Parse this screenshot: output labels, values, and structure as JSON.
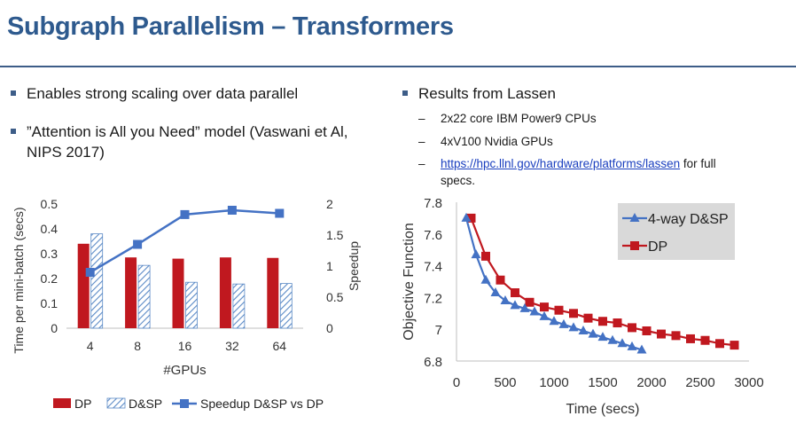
{
  "slide": {
    "title": "Subgraph Parallelism – Transformers",
    "left_bullets": [
      "Enables strong scaling over data parallel",
      "”Attention is All you Need” model (Vaswani et Al, NIPS 2017)"
    ],
    "right_bullet": "Results from Lassen",
    "sub_bullets": [
      "2x22 core IBM Power9 CPUs",
      "4xV100 Nvidia GPUs"
    ],
    "link_text": "https://hpc.llnl.gov/hardware/platforms/lassen",
    "link_suffix": " for full specs."
  },
  "colors": {
    "title": "#2e5a8e",
    "dp": "#c0181f",
    "dsp": "#5b8ac6",
    "speedup": "#4472c4",
    "rule": "#3d5d88"
  },
  "chart_data": [
    {
      "type": "bar",
      "categories": [
        "4",
        "8",
        "16",
        "32",
        "64"
      ],
      "series": [
        {
          "name": "DP",
          "values": [
            0.34,
            0.285,
            0.28,
            0.285,
            0.283
          ]
        },
        {
          "name": "D&SP",
          "values": [
            0.38,
            0.253,
            0.185,
            0.178,
            0.18
          ]
        }
      ],
      "secondary_series": {
        "name": "Speedup D&SP vs DP",
        "type": "line",
        "values": [
          0.9,
          1.35,
          1.83,
          1.9,
          1.85
        ]
      },
      "xlabel": "#GPUs",
      "ylabel": "Time per mini-batch (secs)",
      "y2label": "Speedup",
      "ylim": [
        0,
        0.5
      ],
      "y2lim": [
        0,
        2
      ],
      "yticks": [
        "0",
        "0.1",
        "0.2",
        "0.3",
        "0.4",
        "0.5"
      ],
      "y2ticks": [
        "0",
        "0.5",
        "1",
        "1.5",
        "2"
      ],
      "legend_position": "bottom",
      "grid": false
    },
    {
      "type": "line",
      "series": [
        {
          "name": "4-way D&SP",
          "x": [
            100,
            200,
            300,
            400,
            500,
            600,
            700,
            800,
            900,
            1000,
            1100,
            1200,
            1300,
            1400,
            1500,
            1600,
            1700,
            1800,
            1900
          ],
          "y": [
            7.7,
            7.47,
            7.31,
            7.23,
            7.18,
            7.15,
            7.13,
            7.11,
            7.08,
            7.05,
            7.03,
            7.01,
            6.99,
            6.97,
            6.95,
            6.93,
            6.91,
            6.89,
            6.87
          ]
        },
        {
          "name": "DP",
          "x": [
            150,
            300,
            450,
            600,
            750,
            900,
            1050,
            1200,
            1350,
            1500,
            1650,
            1800,
            1950,
            2100,
            2250,
            2400,
            2550,
            2700,
            2850
          ],
          "y": [
            7.7,
            7.46,
            7.31,
            7.23,
            7.17,
            7.14,
            7.12,
            7.1,
            7.07,
            7.05,
            7.04,
            7.01,
            6.99,
            6.97,
            6.96,
            6.94,
            6.93,
            6.91,
            6.9
          ]
        }
      ],
      "xlabel": "Time (secs)",
      "ylabel": "Objective Function",
      "xlim": [
        0,
        3000
      ],
      "ylim": [
        6.8,
        7.8
      ],
      "xticks": [
        "0",
        "500",
        "1000",
        "1500",
        "2000",
        "2500",
        "3000"
      ],
      "yticks": [
        "6.8",
        "7",
        "7.2",
        "7.4",
        "7.6",
        "7.8"
      ],
      "legend_position": "top-right",
      "grid": false
    }
  ]
}
